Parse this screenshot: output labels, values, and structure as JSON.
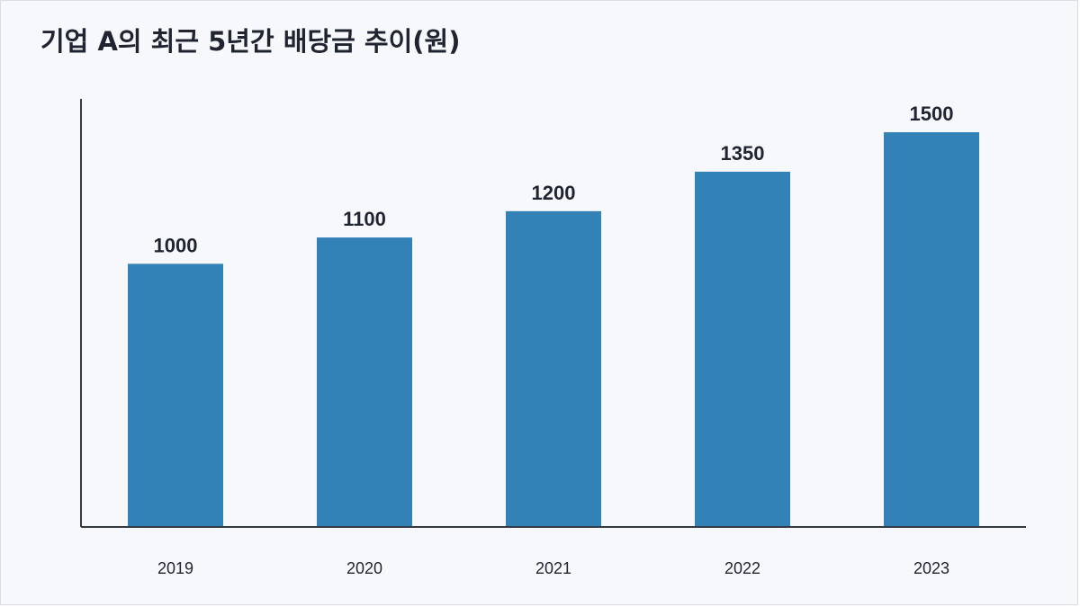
{
  "chart_data": {
    "type": "bar",
    "title": "기업 A의 최근 5년간 배당금 추이(원)",
    "categories": [
      "2019",
      "2020",
      "2021",
      "2022",
      "2023"
    ],
    "values": [
      1000,
      1100,
      1200,
      1350,
      1500
    ],
    "xlabel": "",
    "ylabel": "",
    "ylim": [
      0,
      1900
    ],
    "grid": false,
    "legend": "none",
    "bar_color": "#3282b8",
    "axis_color": "#333a44",
    "data_labels": true
  }
}
